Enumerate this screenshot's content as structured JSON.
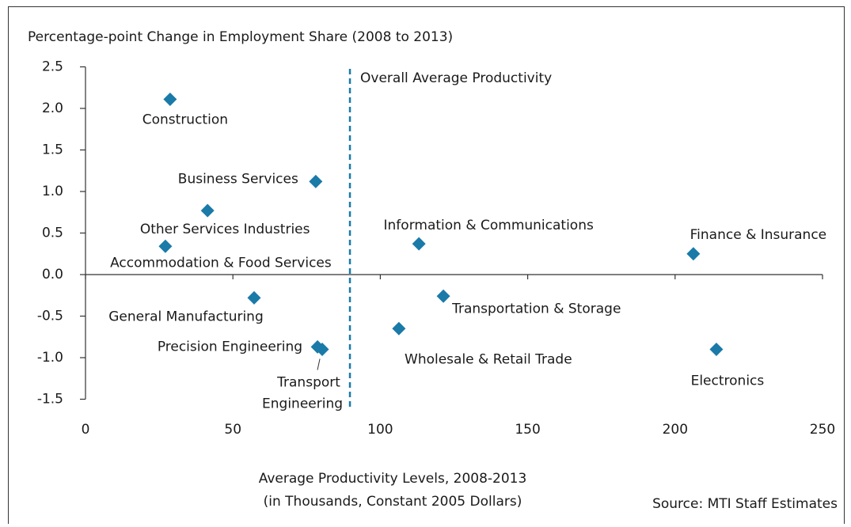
{
  "chart_data": {
    "type": "scatter",
    "title": "Percentage-point Change in Employment Share (2008 to 2013)",
    "x_label": [
      "Average Productivity Levels, 2008-2013",
      "(in Thousands, Constant 2005 Dollars)"
    ],
    "source": "Source: MTI Staff Estimates",
    "color": "#1a7aa8",
    "labels": [
      "Construction",
      "Business Services",
      "Other Services Industries",
      "Accommodation & Food Services",
      "Information & Communications",
      "Finance & Insurance",
      "General Manufacturing",
      "Transportation & Storage",
      "Wholesale & Retail Trade",
      "Precision Engineering",
      "Transport Engineering",
      "Electronics"
    ],
    "x": [
      28.7,
      78.1,
      41.4,
      27.1,
      113.1,
      206.2,
      57.2,
      121.4,
      106.3,
      78.7,
      80.3,
      214
    ],
    "values": [
      2.11,
      1.12,
      0.77,
      0.34,
      0.37,
      0.25,
      -0.28,
      -0.26,
      -0.65,
      -0.87,
      -0.9,
      -0.9
    ],
    "reference_line": {
      "x": 89.7,
      "label": "Overall Average Productivity",
      "color": "#1a7aa8"
    },
    "xlim": [
      0,
      250
    ],
    "xticks": [
      0,
      50,
      100,
      150,
      200,
      250
    ],
    "ylim": [
      -1.5,
      2.5
    ],
    "yticks": [
      2.5,
      {
        "value": 2.0,
        "label": "2.0"
      },
      1.5,
      {
        "value": 1.0,
        "label": "1.0"
      },
      0.5,
      {
        "value": 0.0,
        "label": "0.0"
      },
      -0.5,
      {
        "value": -1.0,
        "label": "-1.0"
      },
      -1.5
    ]
  }
}
